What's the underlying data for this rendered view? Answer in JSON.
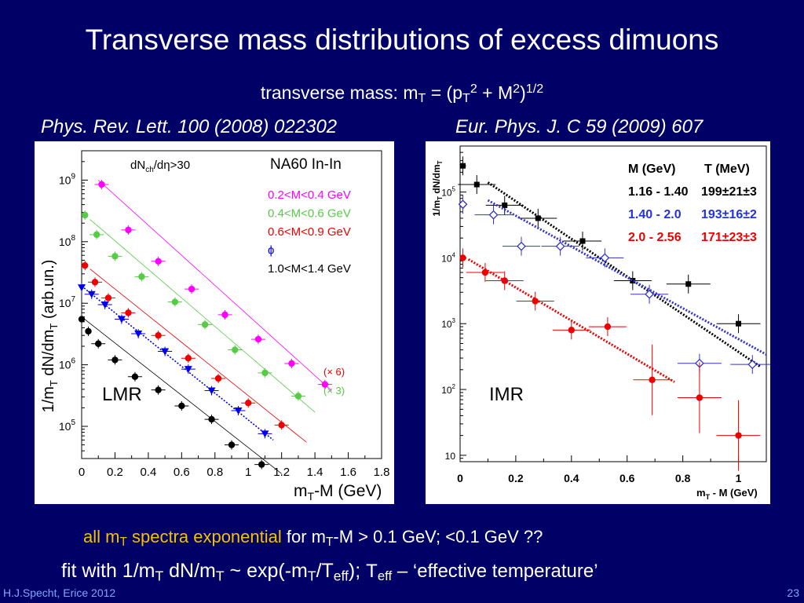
{
  "slide": {
    "title": "Transverse mass distributions of excess dimuons",
    "subtitle_prefix": "transverse mass: m",
    "subtitle_sub_t": "T",
    "subtitle_mid": " = (p",
    "subtitle_sup_2": "2",
    "subtitle_plus": " + M",
    "subtitle_close": ")",
    "subtitle_sup_half": "1/2",
    "ref_left": "Phys. Rev. Lett. 100 (2008) 022302",
    "ref_right": "Eur. Phys. J. C 59 (2009) 607",
    "footer1_hl_a": "all m",
    "footer1_hl_sub": "T",
    "footer1_hl_b": " spectra exponential",
    "footer1_rest_a": "  for m",
    "footer1_rest_sub": "T",
    "footer1_rest_b": "-M > 0.1 GeV;  <0.1 GeV ??",
    "footer2_a": "fit  with 1/m",
    "footer2_sub1": "T",
    "footer2_b": " dN/m",
    "footer2_sub2": "T",
    "footer2_c": " ~ exp(-m",
    "footer2_sub3": "T",
    "footer2_d": "/T",
    "footer2_sub4": "eff",
    "footer2_e": ");   ",
    "footer2_f": "T",
    "footer2_sub5": "eff",
    "footer2_g": " – ‘effective temperature’",
    "author": "H.J.Specht, Erice 2012",
    "page": "23"
  },
  "colors": {
    "background": "#000066",
    "highlight": "#f2c200",
    "magenta": "#ff00ff",
    "green": "#55cc44",
    "red": "#ee0000",
    "blue": "#0000ee",
    "black": "#000000",
    "imr_blue": "#3333cc"
  },
  "chart_data": [
    {
      "type": "scatter",
      "label": "LMR",
      "xlabel_a": "m",
      "xlabel_sub": "T",
      "xlabel_b": "-M (GeV)",
      "ylabel_a": "1/m",
      "ylabel_sub1": "T",
      "ylabel_b": " dN/dm",
      "ylabel_sub2": "T",
      "ylabel_c": " (arb.un.)",
      "yscale": "log",
      "xlim": [
        0,
        1.8
      ],
      "ylim": [
        30000,
        3000000000
      ],
      "xticks": [
        "0",
        "0.2",
        "0.4",
        "0.6",
        "0.8",
        "1",
        "1.2",
        "1.4",
        "1.6",
        "1.8"
      ],
      "xtick_values": [
        0,
        0.2,
        0.4,
        0.6,
        0.8,
        1.0,
        1.2,
        1.4,
        1.6,
        1.8
      ],
      "yticks": [
        {
          "base": "10",
          "exp": "5",
          "value": 100000
        },
        {
          "base": "10",
          "exp": "6",
          "value": 1000000
        },
        {
          "base": "10",
          "exp": "7",
          "value": 10000000
        },
        {
          "base": "10",
          "exp": "8",
          "value": 100000000
        },
        {
          "base": "10",
          "exp": "9",
          "value": 1000000000
        }
      ],
      "cut_label": "dN",
      "cut_sub": "ch",
      "cut_rest": "/dη>30",
      "experiment": "NA60 In-In",
      "legend": [
        {
          "text": "0.2<M<0.4 GeV",
          "color": "#ff00ff"
        },
        {
          "text": "0.4<M<0.6 GeV",
          "color": "#55cc44"
        },
        {
          "text": "0.6<M<0.9 GeV",
          "color": "#ee0000"
        },
        {
          "text": "ϕ",
          "color": "#0000ee"
        },
        {
          "text": "1.0<M<1.4 GeV",
          "color": "#000000"
        }
      ],
      "scale_notes": [
        {
          "text": "(× 6)",
          "color": "#ee0000"
        },
        {
          "text": "(× 3)",
          "color": "#55cc44"
        }
      ],
      "series": [
        {
          "name": "0.2<M<0.4 GeV",
          "color": "#ff00ff",
          "marker": "circle",
          "x": [
            0.12,
            0.28,
            0.46,
            0.66,
            0.86,
            1.06,
            1.26,
            1.46
          ],
          "y": [
            850000000,
            155000000,
            48000000,
            17000000,
            6500000,
            2600000,
            1050000,
            480000
          ],
          "fit": [
            [
              0.1,
              1000000000
            ],
            [
              1.5,
              380000
            ]
          ]
        },
        {
          "name": "0.4<M<0.6 GeV",
          "color": "#55cc44",
          "marker": "circle",
          "x": [
            0.02,
            0.09,
            0.2,
            0.36,
            0.56,
            0.74,
            0.92,
            1.1,
            1.3
          ],
          "y": [
            270000000,
            130000000,
            58000000,
            27000000,
            10500000,
            4500000,
            1750000,
            740000,
            310000
          ],
          "fit": [
            [
              0.05,
              230000000
            ],
            [
              1.4,
              170000
            ]
          ]
        },
        {
          "name": "0.6<M<0.9 GeV",
          "color": "#ee0000",
          "marker": "circle",
          "x": [
            0.02,
            0.08,
            0.16,
            0.28,
            0.46,
            0.64,
            0.82,
            1.0,
            1.2
          ],
          "y": [
            41000000,
            22000000,
            12200000,
            7000000,
            3000000,
            1280000,
            600000,
            240000,
            105000
          ],
          "fit": [
            [
              0.05,
              36000000
            ],
            [
              1.35,
              55000
            ]
          ]
        },
        {
          "name": "phi",
          "color": "#0000ee",
          "marker": "triangle-down",
          "x": [
            0.0,
            0.06,
            0.14,
            0.24,
            0.34,
            0.5,
            0.64,
            0.78,
            0.94,
            1.1
          ],
          "y": [
            18000000,
            14000000,
            9500000,
            5500000,
            3200000,
            1650000,
            850000,
            380000,
            180000,
            76000
          ],
          "fit": [
            [
              0.0,
              19000000
            ],
            [
              1.15,
              60000
            ]
          ]
        },
        {
          "name": "1.0<M<1.4 GeV",
          "color": "#000000",
          "marker": "circle",
          "x": [
            0.0,
            0.04,
            0.1,
            0.2,
            0.32,
            0.46,
            0.6,
            0.78,
            0.9,
            1.08
          ],
          "y": [
            5500000,
            3500000,
            2200000,
            1200000,
            640000,
            390000,
            215000,
            130000,
            50000,
            24000
          ],
          "fit": [
            [
              0.0,
              6000000
            ],
            [
              1.2,
              17000
            ]
          ]
        }
      ]
    },
    {
      "type": "scatter",
      "label": "IMR",
      "xlabel_a": "m",
      "xlabel_sub": "T",
      "xlabel_b": " - M   (GeV)",
      "ylabel_a": "1/m",
      "ylabel_sub1": "T",
      "ylabel_b": " dN/dm",
      "ylabel_sub2": "T",
      "yscale": "log",
      "xlim": [
        0,
        1.1
      ],
      "ylim": [
        8,
        500000
      ],
      "xticks": [
        "0",
        "0.2",
        "0.4",
        "0.6",
        "0.8",
        "1"
      ],
      "xtick_values": [
        0,
        0.2,
        0.4,
        0.6,
        0.8,
        1.0
      ],
      "yticks": [
        {
          "base": "10",
          "exp": "",
          "value": 10
        },
        {
          "base": "10",
          "exp": "2",
          "value": 100
        },
        {
          "base": "10",
          "exp": "3",
          "value": 1000
        },
        {
          "base": "10",
          "exp": "4",
          "value": 10000
        },
        {
          "base": "10",
          "exp": "5",
          "value": 100000
        }
      ],
      "legend_header": {
        "m": "M (GeV)",
        "t": "T (MeV)"
      },
      "legend": [
        {
          "m": "1.16 - 1.40",
          "t": "199±21±3",
          "color": "#000000"
        },
        {
          "m": "1.40 - 2.0",
          "t": "193±16±2",
          "color": "#2233dd"
        },
        {
          "m": "2.0  - 2.56",
          "t": "171±23±3",
          "color": "#ee0000"
        }
      ],
      "series": [
        {
          "name": "1.16 - 1.40",
          "color": "#000000",
          "marker": "square",
          "x": [
            0.01,
            0.06,
            0.16,
            0.28,
            0.44,
            0.62,
            0.82,
            1.0
          ],
          "y": [
            250000,
            130000,
            63000,
            40000,
            18000,
            4500,
            4000,
            1000
          ],
          "fit": [
            [
              0.1,
              140000
            ],
            [
              1.08,
              220
            ]
          ]
        },
        {
          "name": "1.40 - 2.0",
          "color": "#3333cc",
          "marker": "open-diamond",
          "x": [
            0.01,
            0.12,
            0.22,
            0.36,
            0.52,
            0.68,
            0.86,
            1.05
          ],
          "y": [
            65000,
            45000,
            15000,
            15000,
            10000,
            2800,
            250,
            240
          ],
          "fit": [
            [
              0.1,
              75000
            ],
            [
              1.1,
              340
            ]
          ]
        },
        {
          "name": "2.0  - 2.56",
          "color": "#ee0000",
          "marker": "circle",
          "x": [
            0.01,
            0.09,
            0.16,
            0.27,
            0.4,
            0.53,
            0.69,
            0.86,
            1.0
          ],
          "y": [
            10000,
            6000,
            4500,
            2200,
            800,
            900,
            140,
            75,
            20
          ],
          "fit": [
            [
              0.03,
              9500
            ],
            [
              0.77,
              130
            ]
          ]
        }
      ]
    }
  ]
}
